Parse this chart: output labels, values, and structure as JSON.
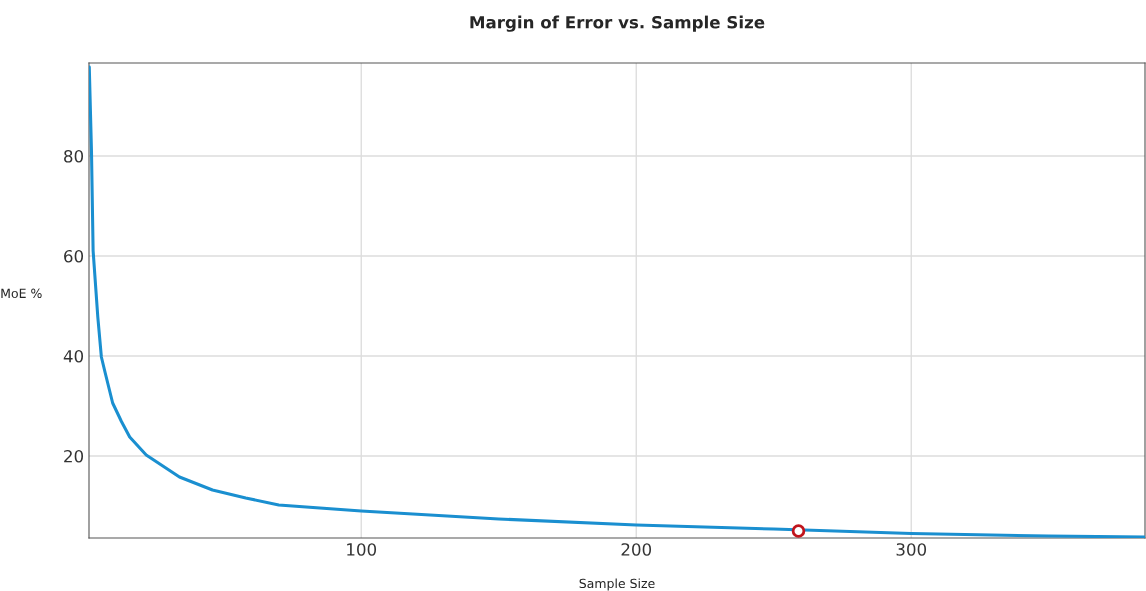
{
  "chart_data": {
    "type": "line",
    "title": "Margin of Error vs. Sample Size",
    "xlabel": "Sample Size",
    "ylabel": "MoE %",
    "xlim": [
      1,
      385
    ],
    "ylim": [
      3.6,
      98.6
    ],
    "xticks": [
      100,
      200,
      300
    ],
    "yticks": [
      20,
      40,
      60,
      80
    ],
    "grid": true,
    "marker": "none",
    "line_style": "solid",
    "series": [
      {
        "color": "#1a8fd0",
        "x": [
          1.1,
          1.9,
          2.5,
          4.2,
          5.5,
          6.9,
          9.6,
          12.8,
          15.8,
          21.8,
          33.9,
          45.9,
          58,
          70,
          100,
          150,
          200,
          250,
          300,
          350,
          385
        ],
        "values": [
          97.8,
          81,
          61,
          47.8,
          39.8,
          36.6,
          30.6,
          26.9,
          23.8,
          20.2,
          15.8,
          13.2,
          11.6,
          10.2,
          9.0,
          7.4,
          6.2,
          5.4,
          4.5,
          4.0,
          3.8
        ]
      },
      {
        "type": "scatter",
        "color": "#c0141c",
        "marker": "circle",
        "x": [
          259
        ],
        "values": [
          5
        ]
      }
    ]
  }
}
